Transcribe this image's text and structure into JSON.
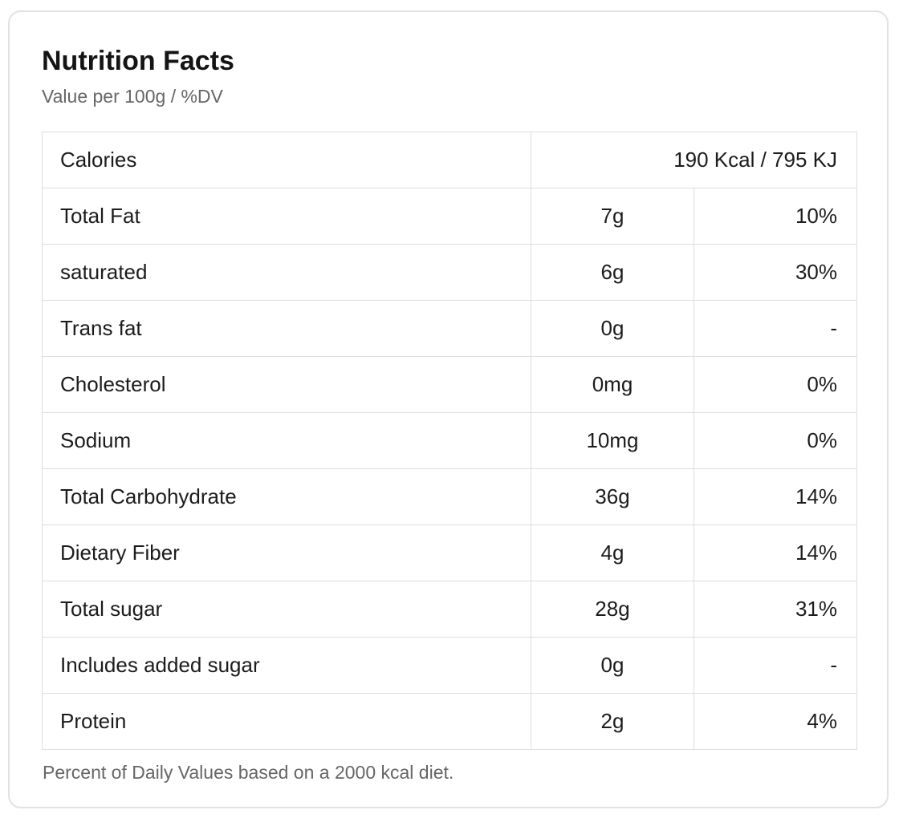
{
  "card": {
    "title": "Nutrition Facts",
    "subtitle": "Value per 100g / %DV",
    "footnote": "Percent of Daily Values based on a 2000 kcal diet."
  },
  "table": {
    "calories_row": {
      "label": "Calories",
      "value": "190 Kcal / 795 KJ"
    },
    "rows": [
      {
        "label": "Total Fat",
        "amount": "7g",
        "dv": "10%"
      },
      {
        "label": "saturated",
        "amount": "6g",
        "dv": "30%"
      },
      {
        "label": "Trans fat",
        "amount": "0g",
        "dv": "-"
      },
      {
        "label": "Cholesterol",
        "amount": "0mg",
        "dv": "0%"
      },
      {
        "label": "Sodium",
        "amount": "10mg",
        "dv": "0%"
      },
      {
        "label": "Total Carbohydrate",
        "amount": "36g",
        "dv": "14%"
      },
      {
        "label": "Dietary Fiber",
        "amount": "4g",
        "dv": "14%"
      },
      {
        "label": "Total sugar",
        "amount": "28g",
        "dv": "31%"
      },
      {
        "label": "Includes added sugar",
        "amount": "0g",
        "dv": "-"
      },
      {
        "label": "Protein",
        "amount": "2g",
        "dv": "4%"
      }
    ]
  },
  "colors": {
    "text": "#1c1c1c",
    "muted_text": "#666666",
    "table_border": "#dedede",
    "card_border": "#e2e2e2",
    "background": "#ffffff"
  }
}
